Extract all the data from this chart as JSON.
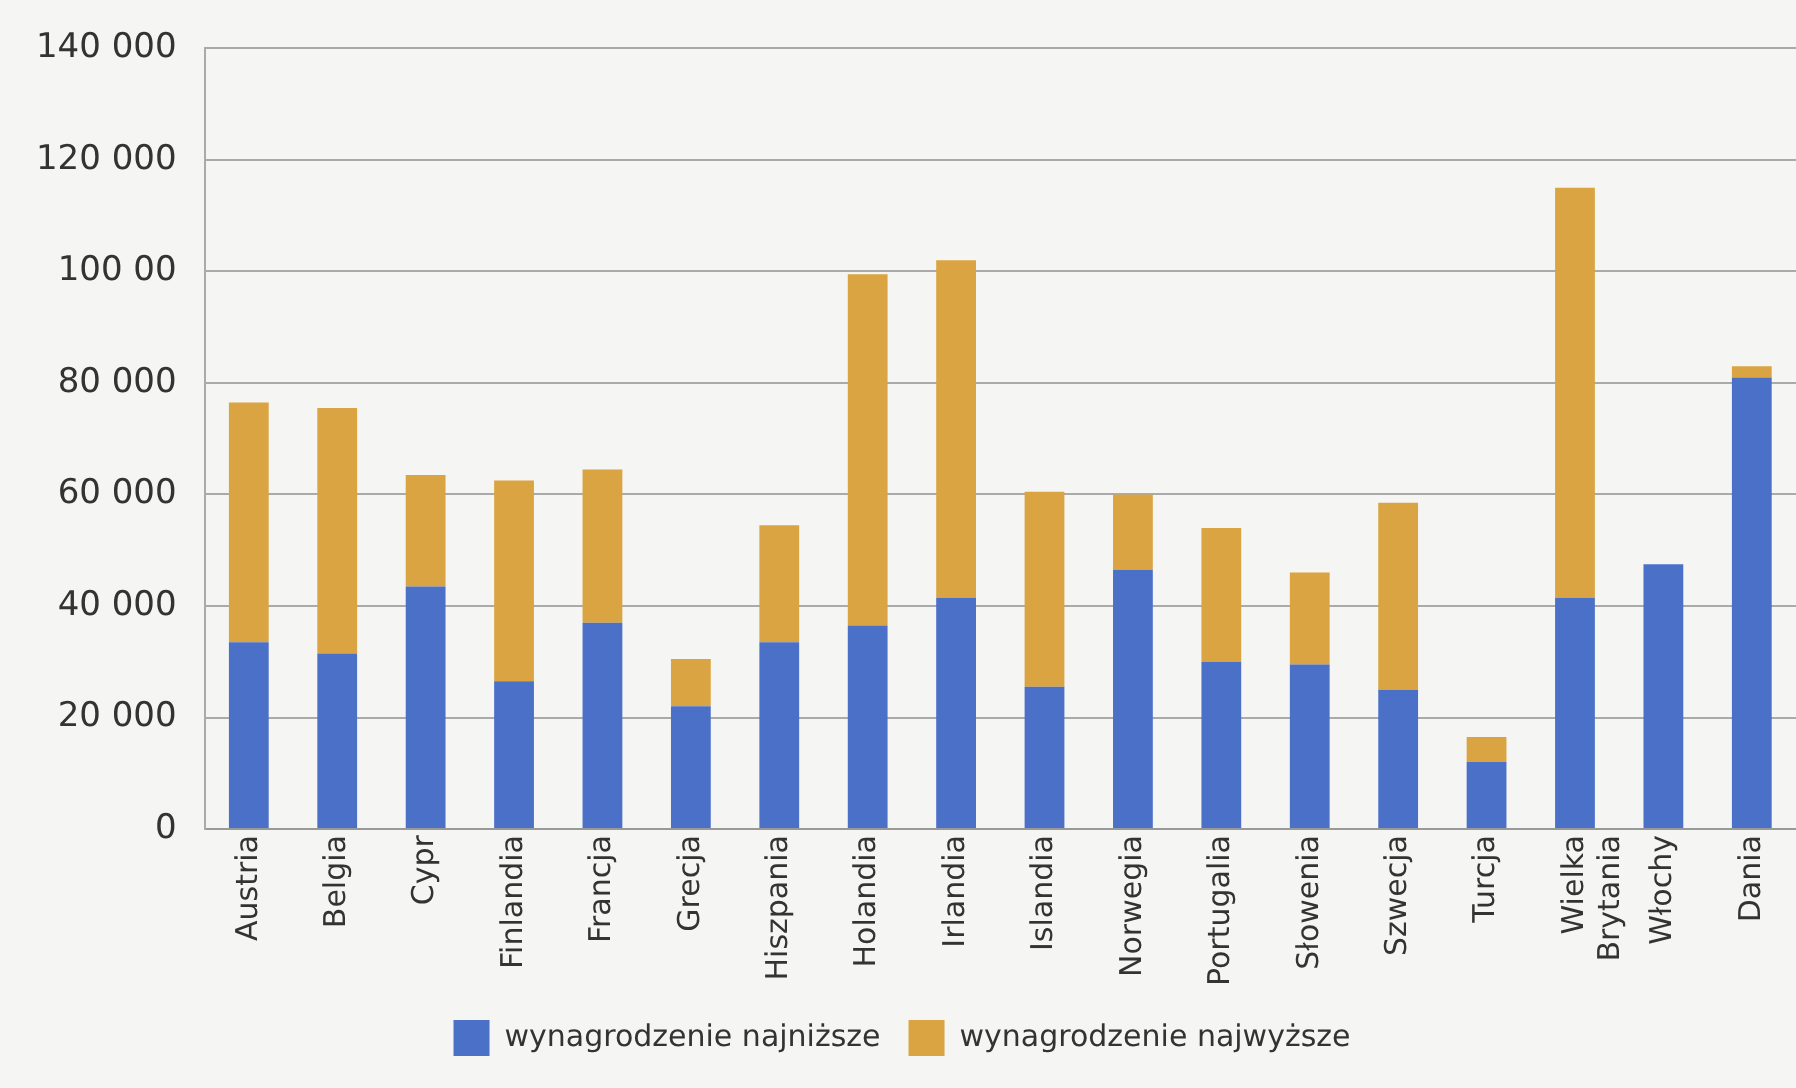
{
  "chart_data": {
    "type": "bar",
    "stacked": true,
    "categories": [
      "Austria",
      "Belgia",
      "Cypr",
      "Finlandia",
      "Francja",
      "Grecja",
      "Hiszpania",
      "Holandia",
      "Irlandia",
      "Islandia",
      "Norwegia",
      "Portugalia",
      "Słowenia",
      "Szwecja",
      "Turcja",
      "Wielka Brytania",
      "Włochy",
      "Dania"
    ],
    "series": [
      {
        "name": "wynagrodzenie najniższe",
        "color": "#4a70c8",
        "values": [
          33500,
          31500,
          43500,
          26500,
          37000,
          22000,
          33500,
          36500,
          41500,
          25500,
          46500,
          30000,
          29500,
          25000,
          12000,
          41500,
          47500,
          81000
        ]
      },
      {
        "name": "wynagrodzenie najwyższe",
        "color": "#d9a441",
        "values": [
          43000,
          44000,
          20000,
          36000,
          27500,
          8500,
          21000,
          63000,
          60500,
          35000,
          13500,
          24000,
          16500,
          33500,
          4500,
          73500,
          0,
          2000
        ]
      }
    ],
    "ylim": [
      0,
      140000
    ],
    "yticks": [
      {
        "value": 0,
        "label": "0"
      },
      {
        "value": 20000,
        "label": "20 000"
      },
      {
        "value": 40000,
        "label": "40 000"
      },
      {
        "value": 60000,
        "label": "60 000"
      },
      {
        "value": 80000,
        "label": "80 000"
      },
      {
        "value": 100000,
        "label": "100 00"
      },
      {
        "value": 120000,
        "label": "120 000"
      },
      {
        "value": 140000,
        "label": "140 000"
      }
    ],
    "grid": "y",
    "legend": "bottom"
  }
}
